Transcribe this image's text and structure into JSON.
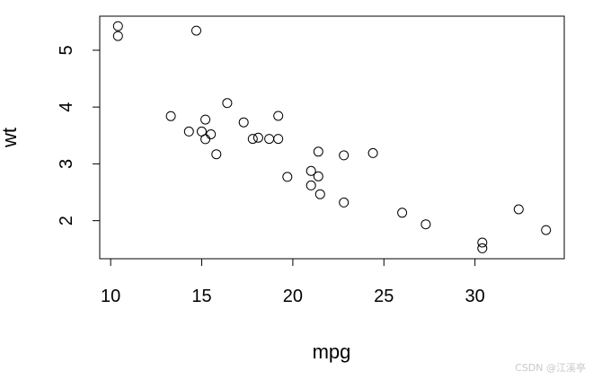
{
  "chart_data": {
    "type": "scatter",
    "title": "",
    "xlabel": "mpg",
    "ylabel": "wt",
    "xlim": [
      9.4,
      34.9
    ],
    "ylim": [
      1.33,
      5.6
    ],
    "x_ticks": [
      10,
      15,
      20,
      25,
      30
    ],
    "y_ticks": [
      2,
      3,
      4,
      5
    ],
    "x_tick_labels": [
      "10",
      "15",
      "20",
      "25",
      "30"
    ],
    "y_tick_labels": [
      "2",
      "3",
      "4",
      "5"
    ],
    "grid": false,
    "legend": "none",
    "marker": "open-circle",
    "points": [
      {
        "x": 21.0,
        "y": 2.62
      },
      {
        "x": 21.0,
        "y": 2.875
      },
      {
        "x": 22.8,
        "y": 2.32
      },
      {
        "x": 21.4,
        "y": 3.215
      },
      {
        "x": 18.7,
        "y": 3.44
      },
      {
        "x": 18.1,
        "y": 3.46
      },
      {
        "x": 14.3,
        "y": 3.57
      },
      {
        "x": 24.4,
        "y": 3.19
      },
      {
        "x": 22.8,
        "y": 3.15
      },
      {
        "x": 19.2,
        "y": 3.44
      },
      {
        "x": 17.8,
        "y": 3.44
      },
      {
        "x": 16.4,
        "y": 4.07
      },
      {
        "x": 17.3,
        "y": 3.73
      },
      {
        "x": 15.2,
        "y": 3.78
      },
      {
        "x": 10.4,
        "y": 5.25
      },
      {
        "x": 10.4,
        "y": 5.424
      },
      {
        "x": 14.7,
        "y": 5.345
      },
      {
        "x": 32.4,
        "y": 2.2
      },
      {
        "x": 30.4,
        "y": 1.615
      },
      {
        "x": 33.9,
        "y": 1.835
      },
      {
        "x": 21.5,
        "y": 2.465
      },
      {
        "x": 15.5,
        "y": 3.52
      },
      {
        "x": 15.2,
        "y": 3.435
      },
      {
        "x": 13.3,
        "y": 3.84
      },
      {
        "x": 19.2,
        "y": 3.845
      },
      {
        "x": 27.3,
        "y": 1.935
      },
      {
        "x": 26.0,
        "y": 2.14
      },
      {
        "x": 30.4,
        "y": 1.513
      },
      {
        "x": 15.8,
        "y": 3.17
      },
      {
        "x": 19.7,
        "y": 2.77
      },
      {
        "x": 15.0,
        "y": 3.57
      },
      {
        "x": 21.4,
        "y": 2.78
      }
    ]
  },
  "watermark": "CSDN @江溪亭"
}
